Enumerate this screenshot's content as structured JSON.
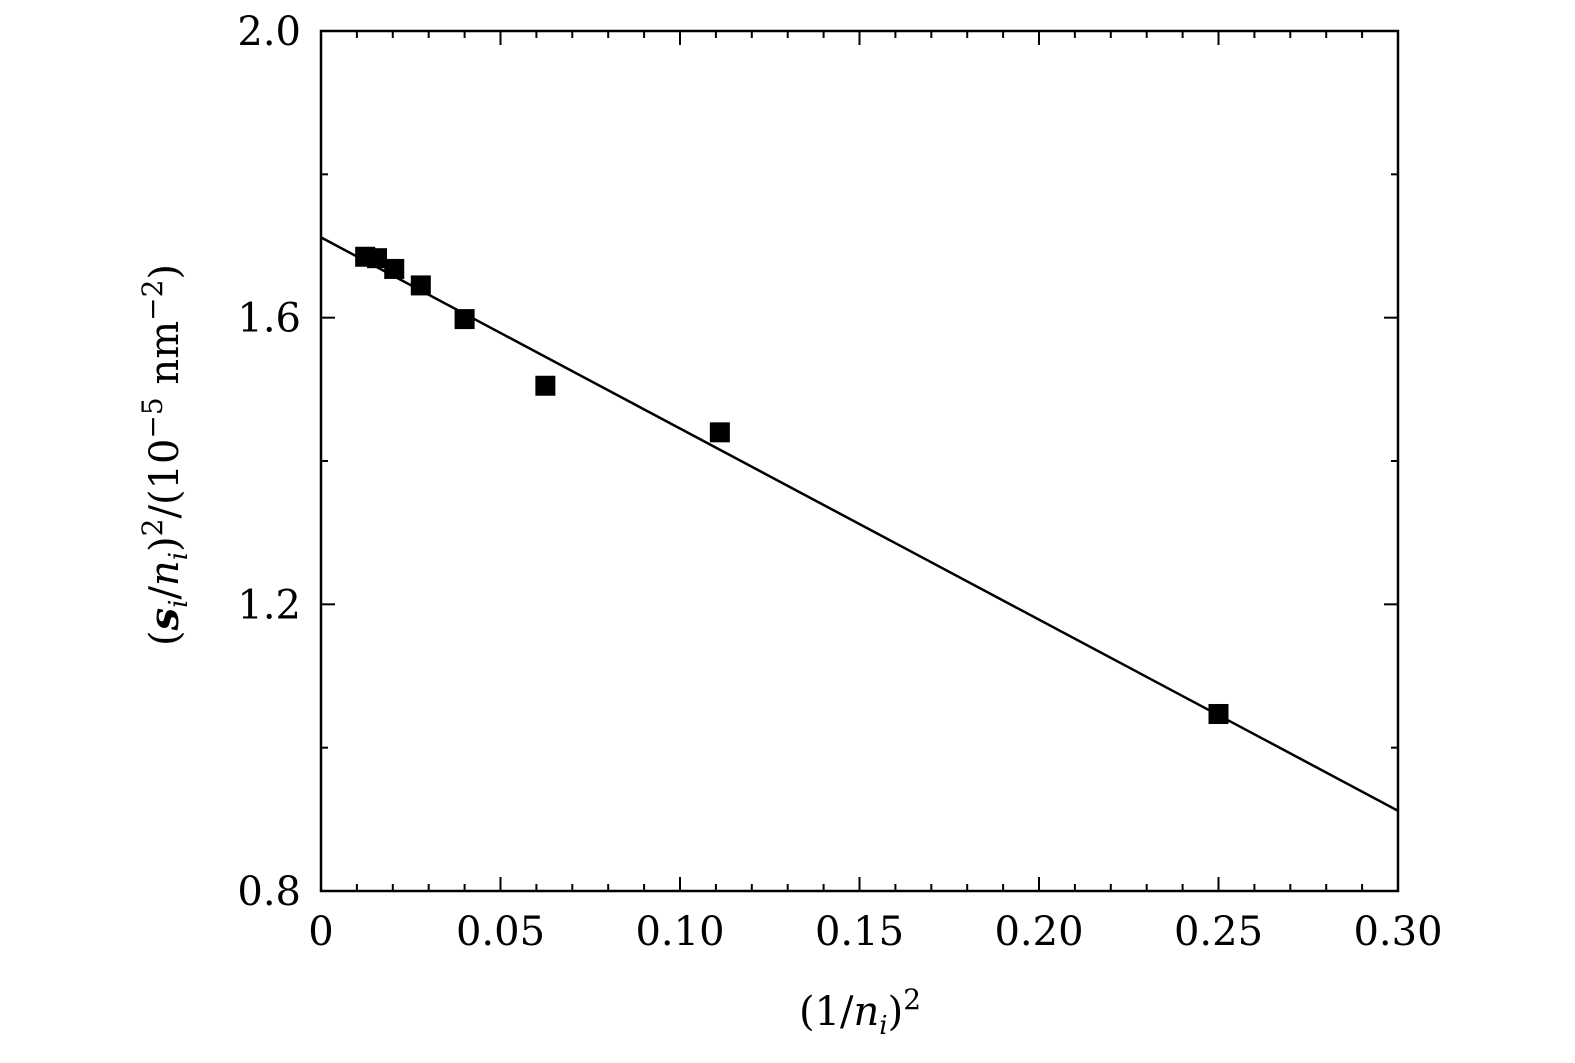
{
  "chart_data": {
    "type": "scatter",
    "xlabel": {
      "prefix": "(1/",
      "var": "n",
      "sub": "i",
      "suffix": ")",
      "sup": "2"
    },
    "ylabel": {
      "open": "(",
      "bold": "s",
      "sub1": "i",
      "mid": "/",
      "var": "n",
      "sub2": "i",
      "close": ")",
      "sup1": "2",
      "unit_open": "/(10",
      "sup2": "−5",
      "unit_close": " nm",
      "sup3": "−2",
      "tail": ")"
    },
    "xlim": [
      0,
      0.3
    ],
    "ylim": [
      0.8,
      2.0
    ],
    "x_major_ticks": [
      0,
      0.05,
      0.1,
      0.15,
      0.2,
      0.25,
      0.3
    ],
    "x_tick_labels": [
      "0",
      "0.05",
      "0.10",
      "0.15",
      "0.20",
      "0.25",
      "0.30"
    ],
    "x_minor_ticks": [
      0.01,
      0.02,
      0.03,
      0.04,
      0.06,
      0.07,
      0.08,
      0.09,
      0.11,
      0.12,
      0.13,
      0.14,
      0.16,
      0.17,
      0.18,
      0.19,
      0.21,
      0.22,
      0.23,
      0.24,
      0.26,
      0.27,
      0.28,
      0.29
    ],
    "y_major_ticks": [
      0.8,
      1.2,
      1.6,
      2.0
    ],
    "y_tick_labels": [
      "0.8",
      "1.2",
      "1.6",
      "2.0"
    ],
    "y_minor_ticks": [
      1.0,
      1.4,
      1.8
    ],
    "series": [
      {
        "marker": "square",
        "color": "#000000",
        "x": [
          0.0123,
          0.0156,
          0.0204,
          0.0278,
          0.04,
          0.0625,
          0.1111,
          0.25
        ],
        "y": [
          1.685,
          1.683,
          1.668,
          1.645,
          1.598,
          1.505,
          1.44,
          1.047
        ]
      }
    ],
    "fit_line": {
      "x": [
        0,
        0.3
      ],
      "y": [
        1.712,
        0.912
      ],
      "color": "#000000"
    },
    "grid": false,
    "legend": "none"
  }
}
